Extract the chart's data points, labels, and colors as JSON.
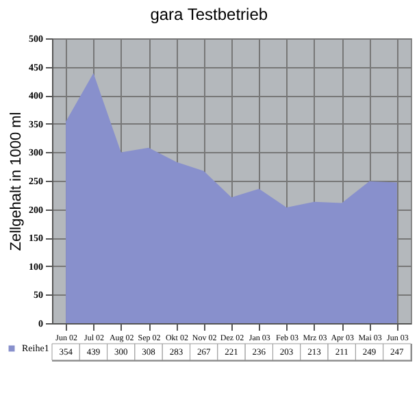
{
  "chart_data": {
    "type": "area",
    "title": "gara Testbetrieb",
    "ylabel": "Zellgehalt in 1000 ml",
    "categories": [
      "Jun 02",
      "Jul 02",
      "Aug 02",
      "Sep 02",
      "Okt 02",
      "Nov 02",
      "Dez 02",
      "Jan 03",
      "Feb 03",
      "Mrz 03",
      "Apr 03",
      "Mai 03",
      "Jun 03"
    ],
    "series": [
      {
        "name": "Reihe1",
        "color": "#8890cc",
        "values": [
          354,
          439,
          300,
          308,
          283,
          267,
          221,
          236,
          203,
          213,
          211,
          249,
          247
        ]
      }
    ],
    "ylim": [
      0,
      500
    ],
    "yticks": [
      0,
      50,
      100,
      150,
      200,
      250,
      300,
      350,
      400,
      450,
      500
    ],
    "grid": true,
    "data_labels": true,
    "legend": "bottom left"
  }
}
